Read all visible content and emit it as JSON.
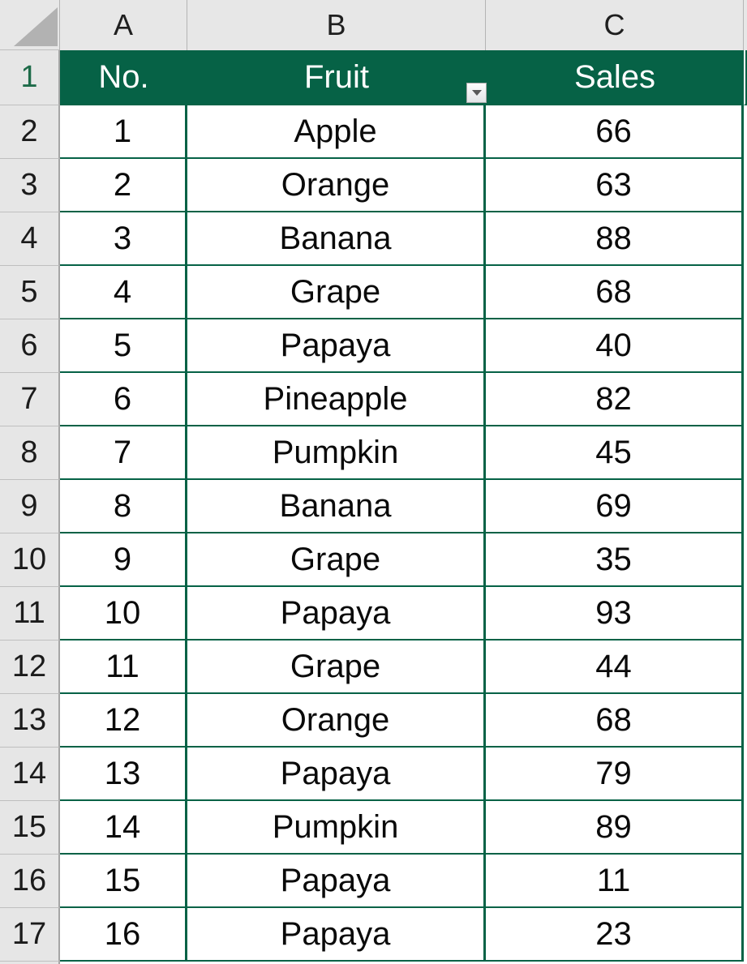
{
  "colors": {
    "table_green": "#066246",
    "header_text": "#FFFFFF",
    "gutter_bg": "#E6E6E6",
    "column_strip_bg": "#E7E7E7",
    "active_row_number_green": "#1E6B49"
  },
  "column_header_strip": {
    "corner_icon": "select-all-triangle",
    "columns": [
      "A",
      "B",
      "C"
    ]
  },
  "table": {
    "header_row": {
      "sheet_row": "1",
      "no": "No.",
      "fruit": "Fruit",
      "sales": "Sales",
      "filter_icon": "dropdown-arrow"
    },
    "rows": [
      {
        "sheet_row": "2",
        "no": "1",
        "fruit": "Apple",
        "sales": "66"
      },
      {
        "sheet_row": "3",
        "no": "2",
        "fruit": "Orange",
        "sales": "63"
      },
      {
        "sheet_row": "4",
        "no": "3",
        "fruit": "Banana",
        "sales": "88"
      },
      {
        "sheet_row": "5",
        "no": "4",
        "fruit": "Grape",
        "sales": "68"
      },
      {
        "sheet_row": "6",
        "no": "5",
        "fruit": "Papaya",
        "sales": "40"
      },
      {
        "sheet_row": "7",
        "no": "6",
        "fruit": "Pineapple",
        "sales": "82"
      },
      {
        "sheet_row": "8",
        "no": "7",
        "fruit": "Pumpkin",
        "sales": "45"
      },
      {
        "sheet_row": "9",
        "no": "8",
        "fruit": "Banana",
        "sales": "69"
      },
      {
        "sheet_row": "10",
        "no": "9",
        "fruit": "Grape",
        "sales": "35"
      },
      {
        "sheet_row": "11",
        "no": "10",
        "fruit": "Papaya",
        "sales": "93"
      },
      {
        "sheet_row": "12",
        "no": "11",
        "fruit": "Grape",
        "sales": "44"
      },
      {
        "sheet_row": "13",
        "no": "12",
        "fruit": "Orange",
        "sales": "68"
      },
      {
        "sheet_row": "14",
        "no": "13",
        "fruit": "Papaya",
        "sales": "79"
      },
      {
        "sheet_row": "15",
        "no": "14",
        "fruit": "Pumpkin",
        "sales": "89"
      },
      {
        "sheet_row": "16",
        "no": "15",
        "fruit": "Papaya",
        "sales": "11"
      },
      {
        "sheet_row": "17",
        "no": "16",
        "fruit": "Papaya",
        "sales": "23"
      }
    ]
  }
}
